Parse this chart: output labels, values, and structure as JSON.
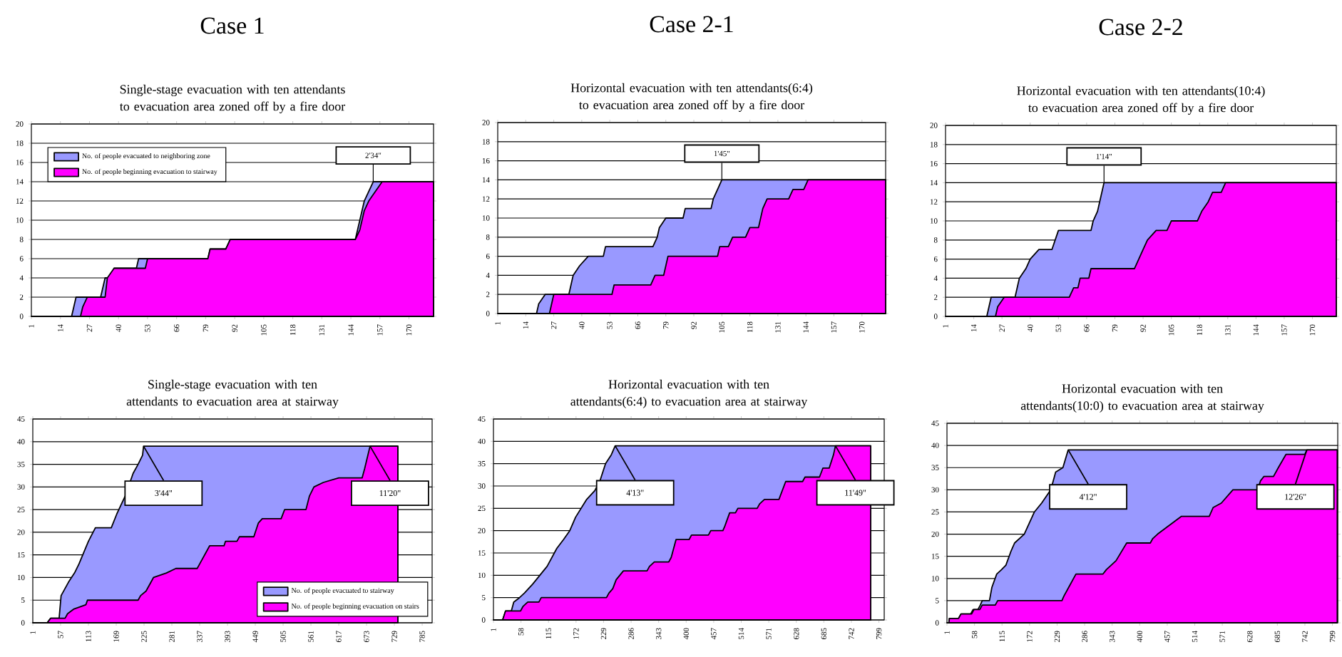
{
  "chart_data": [
    {
      "type": "area",
      "title": "Single-stage evacuation with ten attendants to evacuation area zoned off by a fire door",
      "annotations": [
        "Case 1",
        {
          "text": "2'34\"",
          "x": 154,
          "y": 14
        }
      ],
      "xlim": [
        1,
        181
      ],
      "ylim": [
        0,
        20
      ],
      "xticks": [
        1,
        14,
        27,
        40,
        53,
        66,
        79,
        92,
        105,
        118,
        131,
        144,
        157,
        170
      ],
      "yticks": [
        0,
        2,
        4,
        6,
        8,
        10,
        12,
        14,
        16,
        18,
        20
      ],
      "grid": "y",
      "legend": "top left",
      "series": [
        {
          "name": "No. of people evacuated to neighboring zone",
          "color": "#9999ff",
          "x": [
            1,
            19,
            21,
            32,
            33,
            34,
            36,
            38,
            48,
            49,
            80,
            81,
            88,
            90,
            146,
            147,
            148,
            149,
            150,
            152,
            154,
            181
          ],
          "values": [
            0,
            0,
            2,
            2,
            3,
            4,
            4,
            5,
            5,
            6,
            6,
            7,
            7,
            8,
            8,
            9,
            10,
            11,
            12,
            13,
            14,
            14
          ]
        },
        {
          "name": "No. of people beginning evacuation to stairway",
          "color": "#ff00ff",
          "x": [
            23,
            24,
            26,
            34,
            35,
            38,
            52,
            53,
            80,
            81,
            88,
            90,
            146,
            148,
            149,
            150,
            152,
            155,
            158,
            181
          ],
          "values": [
            0,
            1,
            2,
            2,
            4,
            5,
            5,
            6,
            6,
            7,
            7,
            8,
            8,
            9,
            10,
            11,
            12,
            13,
            14,
            14
          ]
        }
      ]
    },
    {
      "type": "area",
      "title": "Horizontal evacuation with ten attendants(6:4) to evacuation area zoned off by a fire door",
      "annotations": [
        "Case 2-1",
        {
          "text": "1'45\"",
          "x": 105,
          "y": 14
        }
      ],
      "xlim": [
        1,
        181
      ],
      "ylim": [
        0,
        20
      ],
      "xticks": [
        1,
        14,
        27,
        40,
        53,
        66,
        79,
        92,
        105,
        118,
        131,
        144,
        157,
        170
      ],
      "yticks": [
        0,
        2,
        4,
        6,
        8,
        10,
        12,
        14,
        16,
        18,
        20
      ],
      "grid": "y",
      "series": [
        {
          "color": "#9999ff",
          "x": [
            1,
            19,
            20,
            23,
            34,
            35,
            36,
            39,
            43,
            50,
            51,
            73,
            75,
            76,
            79,
            87,
            88,
            100,
            101,
            103,
            105,
            181
          ],
          "values": [
            0,
            0,
            1,
            2,
            2,
            3,
            4,
            5,
            6,
            6,
            7,
            7,
            8,
            9,
            10,
            10,
            11,
            11,
            12,
            13,
            14,
            14
          ]
        },
        {
          "color": "#ff00ff",
          "x": [
            25,
            27,
            54,
            55,
            72,
            74,
            78,
            80,
            103,
            104,
            108,
            110,
            116,
            118,
            122,
            124,
            126,
            136,
            138,
            143,
            145,
            181
          ],
          "values": [
            0,
            2,
            2,
            3,
            3,
            4,
            4,
            6,
            6,
            7,
            7,
            8,
            8,
            9,
            9,
            11,
            12,
            12,
            13,
            13,
            14,
            14
          ]
        }
      ]
    },
    {
      "type": "area",
      "title": "Horizontal evacuation with ten attendants(10:4) to evacuation area zoned off by a fire door",
      "annotations": [
        "Case 2-2",
        {
          "text": "1'14\"",
          "x": 74,
          "y": 14
        }
      ],
      "xlim": [
        1,
        181
      ],
      "ylim": [
        0,
        20
      ],
      "xticks": [
        1,
        14,
        27,
        40,
        53,
        66,
        79,
        92,
        105,
        118,
        131,
        144,
        157,
        170
      ],
      "yticks": [
        0,
        2,
        4,
        6,
        8,
        10,
        12,
        14,
        16,
        18,
        20
      ],
      "grid": "y",
      "series": [
        {
          "color": "#9999ff",
          "x": [
            1,
            20,
            22,
            33,
            35,
            38,
            40,
            44,
            50,
            53,
            68,
            69,
            71,
            72,
            73,
            74,
            181
          ],
          "values": [
            0,
            0,
            2,
            2,
            4,
            5,
            6,
            7,
            7,
            9,
            9,
            10,
            11,
            12,
            13,
            14,
            14
          ]
        },
        {
          "color": "#ff00ff",
          "x": [
            24,
            25,
            28,
            58,
            60,
            62,
            63,
            67,
            68,
            88,
            90,
            92,
            94,
            98,
            103,
            105,
            117,
            119,
            122,
            124,
            128,
            130,
            181
          ],
          "values": [
            0,
            1,
            2,
            2,
            3,
            3,
            4,
            4,
            5,
            5,
            6,
            7,
            8,
            9,
            9,
            10,
            10,
            11,
            12,
            13,
            13,
            14,
            14
          ]
        }
      ]
    },
    {
      "type": "area",
      "title": "Single-stage evacuation with ten attendants to evacuation area at stairway",
      "annotations": [
        {
          "text": "3'44\"",
          "x": 224,
          "y": 39
        },
        {
          "text": "11'20\"",
          "x": 680,
          "y": 39
        }
      ],
      "xlim": [
        1,
        805
      ],
      "ylim": [
        0,
        45
      ],
      "xticks": [
        1,
        57,
        113,
        169,
        225,
        281,
        337,
        393,
        449,
        505,
        561,
        617,
        673,
        729,
        785
      ],
      "yticks": [
        0,
        5,
        10,
        15,
        20,
        25,
        30,
        35,
        40,
        45
      ],
      "grid": "y",
      "legend": "bottom right",
      "series": [
        {
          "name": "No. of people evacuated to stairway",
          "color": "#9999ff",
          "x": [
            1,
            30,
            37,
            54,
            58,
            73,
            85,
            94,
            113,
            127,
            159,
            170,
            187,
            203,
            213,
            222,
            224,
            736
          ],
          "values": [
            0,
            0,
            1,
            1,
            6,
            9,
            11,
            13,
            18,
            21,
            21,
            24,
            28,
            33,
            35,
            37,
            39,
            39
          ]
        },
        {
          "name": "No. of people beginning evacuation on stairs",
          "color": "#ff00ff",
          "x": [
            30,
            37,
            66,
            71,
            83,
            108,
            111,
            213,
            218,
            229,
            244,
            270,
            289,
            332,
            337,
            357,
            386,
            389,
            412,
            417,
            446,
            455,
            463,
            501,
            508,
            551,
            558,
            567,
            586,
            617,
            664,
            669,
            680,
            736
          ],
          "values": [
            0,
            1,
            1,
            2,
            3,
            4,
            5,
            5,
            6,
            7,
            10,
            11,
            12,
            12,
            13,
            17,
            17,
            18,
            18,
            19,
            19,
            22,
            23,
            23,
            25,
            25,
            28,
            30,
            31,
            32,
            32,
            34,
            39,
            39
          ]
        }
      ]
    },
    {
      "type": "area",
      "title": "Horizontal evacuation with ten attendants(6:4) to evacuation area at stairway",
      "annotations": [
        {
          "text": "4'13\"",
          "x": 253,
          "y": 39
        },
        {
          "text": "11'49\"",
          "x": 709,
          "y": 39
        }
      ],
      "xlim": [
        1,
        810
      ],
      "ylim": [
        0,
        45
      ],
      "xticks": [
        1,
        58,
        115,
        172,
        229,
        286,
        343,
        400,
        457,
        514,
        571,
        628,
        685,
        742,
        799
      ],
      "yticks": [
        0,
        5,
        10,
        15,
        20,
        25,
        30,
        35,
        40,
        45
      ],
      "grid": "y",
      "series": [
        {
          "color": "#9999ff",
          "x": [
            1,
            20,
            26,
            38,
            43,
            55,
            65,
            82,
            97,
            112,
            132,
            146,
            159,
            171,
            194,
            211,
            221,
            233,
            245,
            253,
            782
          ],
          "values": [
            0,
            0,
            2,
            2,
            4,
            5,
            6,
            8,
            10,
            12,
            16,
            18,
            20,
            23,
            27,
            29,
            31,
            35,
            37,
            39,
            39
          ]
        },
        {
          "color": "#ff00ff",
          "x": [
            20,
            26,
            57,
            62,
            72,
            95,
            100,
            235,
            240,
            248,
            255,
            270,
            319,
            324,
            334,
            364,
            369,
            379,
            406,
            411,
            446,
            451,
            476,
            480,
            490,
            502,
            507,
            547,
            552,
            562,
            592,
            606,
            641,
            646,
            676,
            683,
            696,
            705,
            709,
            782
          ],
          "values": [
            0,
            2,
            2,
            3,
            4,
            4,
            5,
            5,
            6,
            7,
            9,
            11,
            11,
            12,
            13,
            13,
            14,
            18,
            18,
            19,
            19,
            20,
            20,
            21,
            24,
            24,
            25,
            25,
            26,
            27,
            27,
            31,
            31,
            32,
            32,
            34,
            34,
            37,
            39,
            39
          ]
        }
      ]
    },
    {
      "type": "area",
      "title": "Horizontal evacuation with ten attendants(10:0) to evacuation area at stairway",
      "annotations": [
        {
          "text": "4'12\"",
          "x": 252,
          "y": 39
        },
        {
          "text": "12'26\"",
          "x": 746,
          "y": 39
        }
      ],
      "xlim": [
        1,
        810
      ],
      "ylim": [
        0,
        45
      ],
      "xticks": [
        1,
        58,
        115,
        172,
        229,
        286,
        343,
        400,
        457,
        514,
        571,
        628,
        685,
        742,
        799
      ],
      "yticks": [
        0,
        5,
        10,
        15,
        20,
        25,
        30,
        35,
        40,
        45
      ],
      "grid": "y",
      "series": [
        {
          "color": "#9999ff",
          "x": [
            1,
            5,
            6,
            25,
            30,
            50,
            55,
            65,
            70,
            74,
            89,
            94,
            104,
            114,
            123,
            133,
            141,
            161,
            182,
            197,
            216,
            226,
            241,
            252,
            809
          ],
          "values": [
            0,
            0,
            1,
            1,
            2,
            2,
            3,
            3,
            4,
            5,
            5,
            8,
            11,
            12,
            13,
            16,
            18,
            20,
            25,
            27,
            30,
            34,
            35,
            39,
            39
          ]
        },
        {
          "color": "#ff00ff",
          "x": [
            5,
            6,
            25,
            30,
            52,
            57,
            69,
            74,
            101,
            106,
            239,
            243,
            253,
            268,
            324,
            331,
            351,
            373,
            422,
            427,
            437,
            486,
            544,
            552,
            569,
            593,
            644,
            650,
            657,
            677,
            687,
            703,
            742,
            746,
            809
          ],
          "values": [
            0,
            1,
            1,
            2,
            2,
            3,
            3,
            4,
            4,
            5,
            5,
            6,
            8,
            11,
            11,
            12,
            14,
            18,
            18,
            19,
            20,
            24,
            24,
            26,
            27,
            30,
            30,
            32,
            33,
            33,
            35,
            38,
            38,
            39,
            39
          ]
        }
      ]
    }
  ]
}
